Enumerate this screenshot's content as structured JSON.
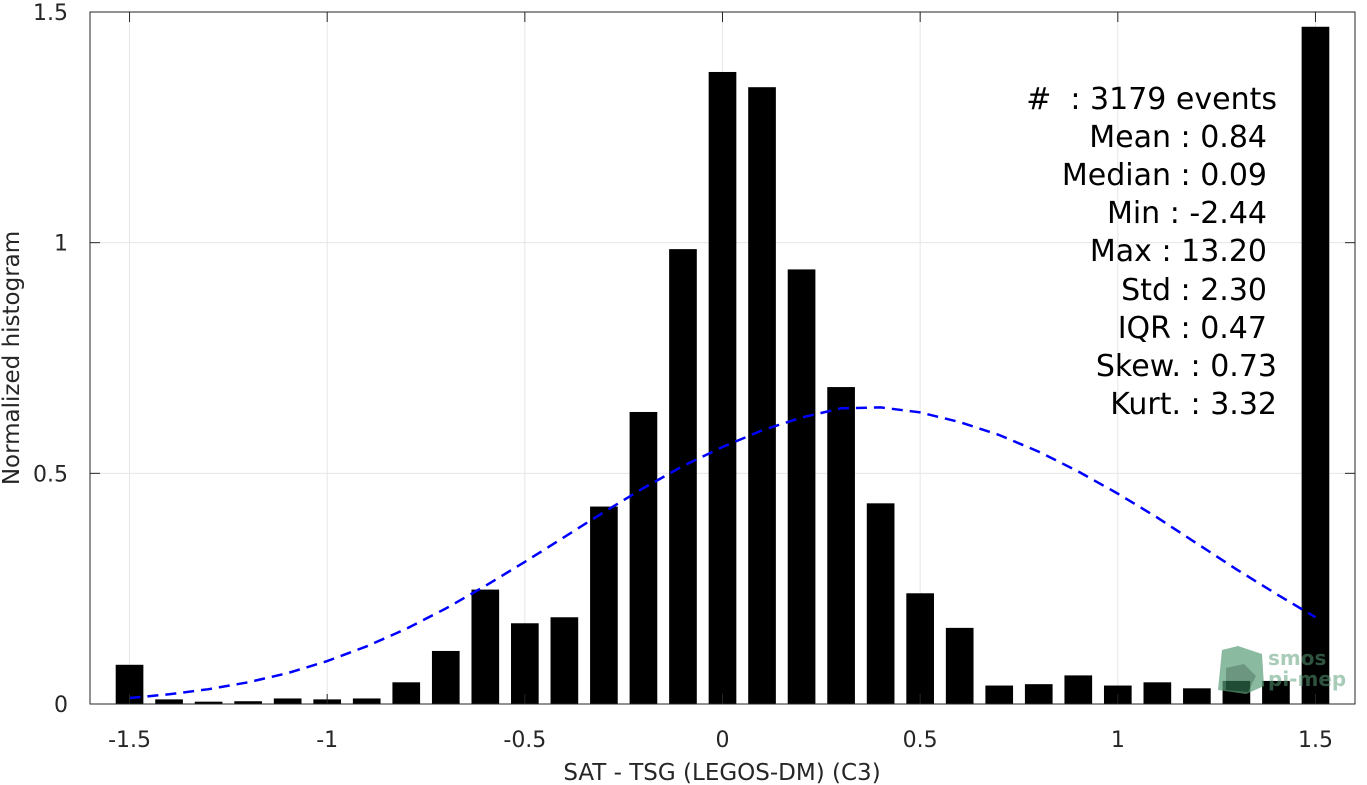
{
  "chart_data": {
    "type": "bar",
    "xlabel": "SAT - TSG (LEGOS-DM) (C3)",
    "ylabel": "Normalized histogram",
    "xlim": [
      -1.6,
      1.6
    ],
    "ylim": [
      0,
      1.5
    ],
    "xticks": [
      -1.5,
      -1,
      -0.5,
      0,
      0.5,
      1,
      1.5
    ],
    "xtick_labels": [
      "-1.5",
      "-1",
      "-0.5",
      "0",
      "0.5",
      "1",
      "1.5"
    ],
    "yticks": [
      0,
      0.5,
      1,
      1.5
    ],
    "ytick_labels": [
      "0",
      "0.5",
      "1",
      "1.5"
    ],
    "grid": true,
    "bar_color": "#000000",
    "fit_color": "#0000ff",
    "bar_width": 0.07,
    "x": [
      -1.5,
      -1.4,
      -1.3,
      -1.2,
      -1.1,
      -1.0,
      -0.9,
      -0.8,
      -0.7,
      -0.6,
      -0.5,
      -0.4,
      -0.3,
      -0.2,
      -0.1,
      0.0,
      0.1,
      0.2,
      0.3,
      0.4,
      0.5,
      0.6,
      0.7,
      0.8,
      0.9,
      1.0,
      1.1,
      1.2,
      1.3,
      1.4,
      1.5
    ],
    "values": [
      0.085,
      0.01,
      0.005,
      0.006,
      0.012,
      0.01,
      0.012,
      0.047,
      0.115,
      0.248,
      0.175,
      0.188,
      0.428,
      0.633,
      0.986,
      1.37,
      1.337,
      0.942,
      0.687,
      0.435,
      0.24,
      0.165,
      0.04,
      0.043,
      0.062,
      0.04,
      0.047,
      0.034,
      0.05,
      0.05,
      1.468
    ],
    "fit_curve": {
      "name": "Gaussian fit",
      "style": "dashed",
      "x": [
        -1.5,
        -1.4,
        -1.3,
        -1.2,
        -1.1,
        -1.0,
        -0.9,
        -0.8,
        -0.7,
        -0.6,
        -0.5,
        -0.4,
        -0.3,
        -0.2,
        -0.1,
        0.0,
        0.1,
        0.2,
        0.3,
        0.4,
        0.5,
        0.6,
        0.7,
        0.8,
        0.9,
        1.0,
        1.1,
        1.2,
        1.3,
        1.4,
        1.5
      ],
      "y": [
        0.013,
        0.021,
        0.032,
        0.047,
        0.067,
        0.093,
        0.125,
        0.163,
        0.207,
        0.256,
        0.308,
        0.362,
        0.416,
        0.468,
        0.516,
        0.557,
        0.593,
        0.621,
        0.641,
        0.643,
        0.632,
        0.611,
        0.583,
        0.547,
        0.504,
        0.456,
        0.404,
        0.348,
        0.292,
        0.239,
        0.188
      ]
    },
    "annotations": [
      {
        "text": "#  : 3179 events"
      },
      {
        "text": "Mean : 0.84"
      },
      {
        "text": "Median : 0.09"
      },
      {
        "text": "Min : -2.44"
      },
      {
        "text": "Max : 13.20"
      },
      {
        "text": "Std : 2.30"
      },
      {
        "text": "IQR : 0.47"
      },
      {
        "text": "Skew. : 0.73"
      },
      {
        "text": "Kurt. : 3.32"
      }
    ]
  },
  "logo": {
    "line1": "smos",
    "line2": "pi-mep"
  }
}
